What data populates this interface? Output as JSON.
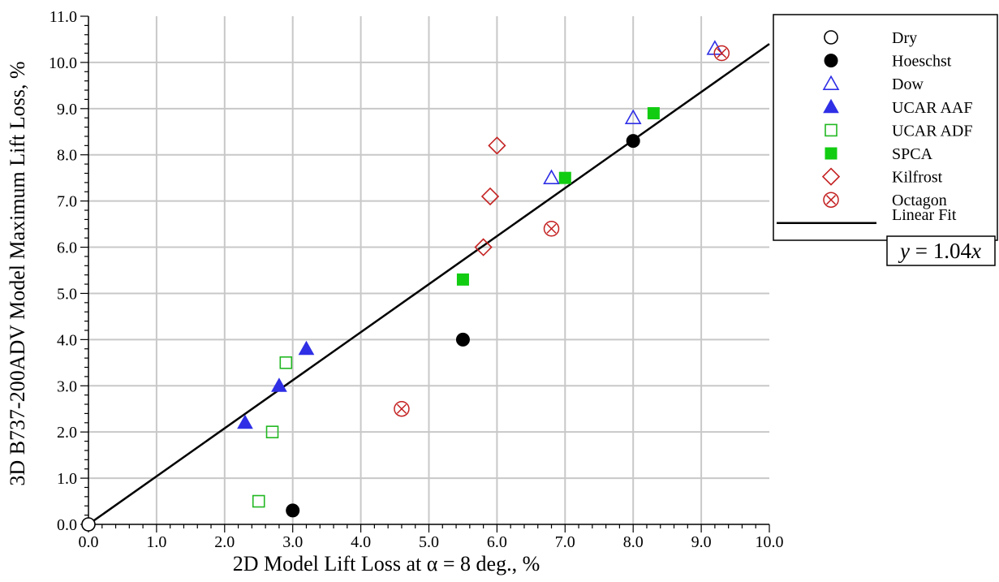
{
  "chart_data": {
    "type": "scatter",
    "xlabel": "2D Model Lift Loss at α = 8 deg., %",
    "ylabel": "3D B737-200ADV Model Maximum Lift Loss, %",
    "xlim": [
      0,
      10
    ],
    "ylim": [
      0,
      11
    ],
    "x_ticks": [
      "0.0",
      "1.0",
      "2.0",
      "3.0",
      "4.0",
      "5.0",
      "6.0",
      "7.0",
      "8.0",
      "9.0",
      "10.0"
    ],
    "y_ticks": [
      "0.0",
      "1.0",
      "2.0",
      "3.0",
      "4.0",
      "5.0",
      "6.0",
      "7.0",
      "8.0",
      "9.0",
      "10.0",
      "11.0"
    ],
    "grid": true,
    "legend_position": "right",
    "series": [
      {
        "name": "Dry",
        "marker": "circle-open",
        "color": "#000000",
        "points": [
          [
            0.0,
            0.0
          ]
        ]
      },
      {
        "name": "Hoeschst",
        "marker": "circle-filled",
        "color": "#000000",
        "points": [
          [
            3.0,
            0.3
          ],
          [
            5.5,
            4.0
          ],
          [
            8.0,
            8.3
          ]
        ]
      },
      {
        "name": "Dow",
        "marker": "triangle-open",
        "color": "#2f2fe6",
        "points": [
          [
            6.8,
            7.5
          ],
          [
            8.0,
            8.8
          ],
          [
            9.2,
            10.3
          ]
        ]
      },
      {
        "name": "UCAR AAF",
        "marker": "triangle-filled",
        "color": "#2f2fe6",
        "points": [
          [
            2.3,
            2.2
          ],
          [
            2.8,
            3.0
          ],
          [
            3.2,
            3.8
          ]
        ]
      },
      {
        "name": "UCAR ADF",
        "marker": "square-open",
        "color": "#22b822",
        "points": [
          [
            2.5,
            0.5
          ],
          [
            2.7,
            2.0
          ],
          [
            2.9,
            3.5
          ]
        ]
      },
      {
        "name": "SPCA",
        "marker": "square-filled",
        "color": "#12cc12",
        "points": [
          [
            5.5,
            5.3
          ],
          [
            7.0,
            7.5
          ],
          [
            8.3,
            8.9
          ]
        ]
      },
      {
        "name": "Kilfrost",
        "marker": "diamond-open",
        "color": "#c42020",
        "points": [
          [
            5.8,
            6.0
          ],
          [
            5.9,
            7.1
          ],
          [
            6.0,
            8.2
          ]
        ]
      },
      {
        "name": "Octagon",
        "marker": "circle-x",
        "color": "#c42020",
        "points": [
          [
            4.6,
            2.5
          ],
          [
            6.8,
            6.4
          ],
          [
            9.3,
            10.2
          ]
        ]
      }
    ],
    "fit": {
      "name": "Linear Fit",
      "slope": 1.04,
      "equation": "y = 1.04x",
      "color": "#000000"
    }
  }
}
